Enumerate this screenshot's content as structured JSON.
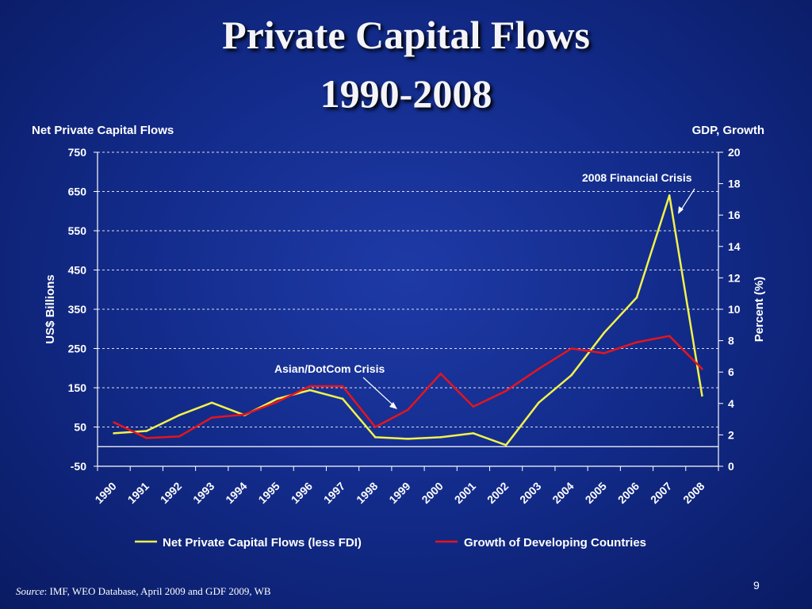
{
  "slide": {
    "title_line1": "Private Capital Flows",
    "title_line2": "1990-2008",
    "page_number": "9",
    "source_label": "Source",
    "source_text": ": IMF, WEO Database, April 2009 and GDF 2009, WB"
  },
  "chart_data": {
    "type": "line",
    "left_axis_title": "Net Private Capital Flows",
    "right_axis_title": "GDP, Growth",
    "ylabel": "US$ Billions",
    "y2label": "Percent (%)",
    "categories": [
      "1990",
      "1991",
      "1992",
      "1993",
      "1994",
      "1995",
      "1996",
      "1997",
      "1998",
      "1999",
      "2000",
      "2001",
      "2002",
      "2003",
      "2004",
      "2005",
      "2006",
      "2007",
      "2008"
    ],
    "yticks": [
      "-50",
      "50",
      "150",
      "250",
      "350",
      "450",
      "550",
      "650",
      "750"
    ],
    "y2ticks": [
      "0",
      "2",
      "4",
      "6",
      "8",
      "10",
      "12",
      "14",
      "16",
      "18",
      "20"
    ],
    "ylim": [
      -50,
      750
    ],
    "y2lim": [
      0,
      20
    ],
    "series": [
      {
        "name": "Net Private Capital Flows (less FDI)",
        "axis": "left",
        "color": "#f2f24a",
        "values": [
          34,
          40,
          80,
          112,
          80,
          122,
          144,
          122,
          24,
          20,
          24,
          34,
          4,
          112,
          182,
          290,
          380,
          640,
          130
        ]
      },
      {
        "name": "Growth of Developing Countries",
        "axis": "right",
        "color": "#e8141c",
        "values": [
          2.8,
          1.8,
          1.9,
          3.1,
          3.3,
          4.1,
          5.1,
          5.1,
          2.5,
          3.6,
          5.9,
          3.8,
          4.8,
          6.2,
          7.5,
          7.2,
          7.9,
          8.3,
          6.2
        ]
      }
    ],
    "annotations": [
      {
        "text": "2008 Financial Crisis"
      },
      {
        "text": "Asian/DotCom Crisis"
      }
    ],
    "grid": true,
    "legend": "bottom"
  }
}
